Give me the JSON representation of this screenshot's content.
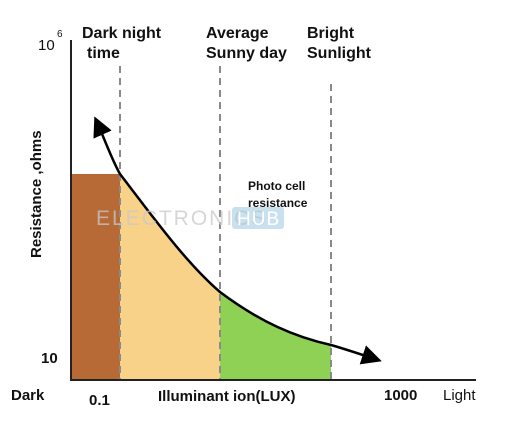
{
  "chart_data": {
    "type": "area",
    "title": "",
    "y_axis": {
      "label": "Resistance ,ohms",
      "top_tick": {
        "base": "10",
        "exp": "6"
      },
      "bottom_tick": "10",
      "scale": "log"
    },
    "x_axis": {
      "label": "Illuminant ion(LUX)",
      "left_end_label": "Dark",
      "right_end_label": "Light",
      "tick_low": "0.1",
      "tick_high": "1000"
    },
    "regions": [
      {
        "label_line1": "Dark night",
        "label_line2": "time",
        "color": "#b86a36"
      },
      {
        "label_line1": "Average",
        "label_line2": "Sunny day",
        "color": "#f9d28a"
      },
      {
        "label_line1": "Bright",
        "label_line2": "Sunlight",
        "color": "#8fd155"
      }
    ],
    "curve_label_line1": "Photo cell",
    "curve_label_line2": "resistance",
    "curve_trend": "resistance decreases as light increases",
    "grid": false
  },
  "watermark": {
    "left": "ELECTRONICS",
    "right": "HUB"
  }
}
